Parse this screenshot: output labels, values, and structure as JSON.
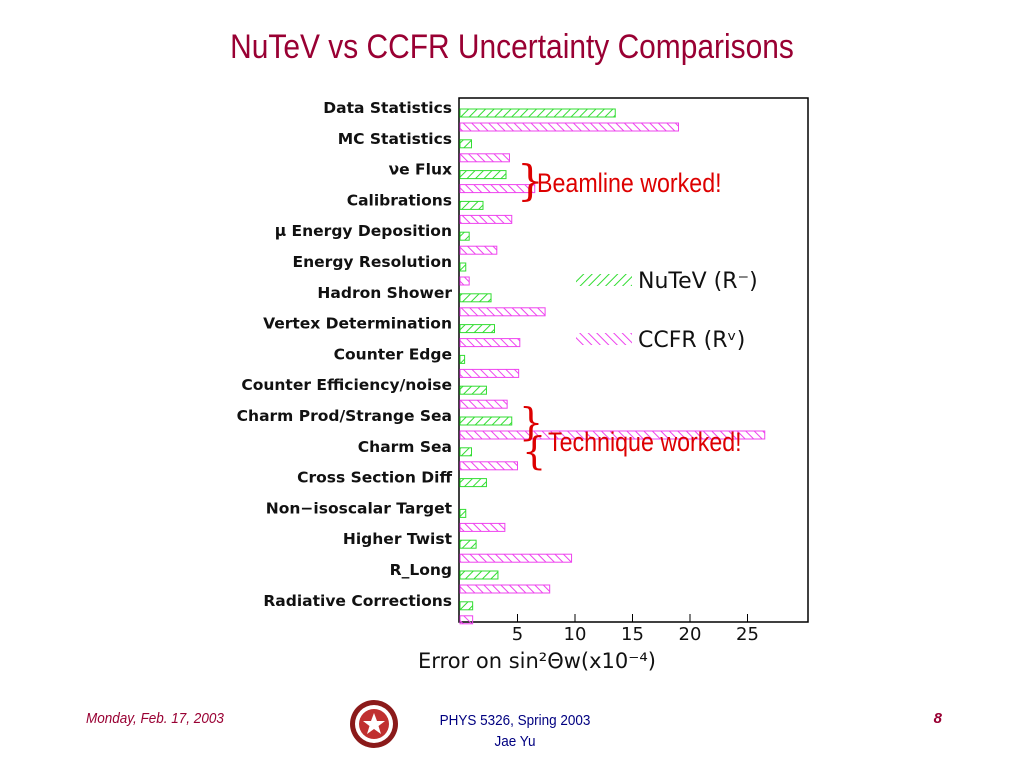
{
  "title": "NuTeV vs CCFR Uncertainty Comparisons",
  "chart_data": {
    "type": "bar",
    "orientation": "horizontal",
    "categories": [
      "Data Statistics",
      "MC Statistics",
      "νe Flux",
      "Calibrations",
      "μ Energy Deposition",
      "Energy Resolution",
      "Hadron Shower",
      "Vertex Determination",
      "Counter Edge",
      "Counter Efficiency/noise",
      "Charm Prod/Strange Sea",
      "Charm Sea",
      "Cross Section Diff",
      "Non−isoscalar Target",
      "Higher Twist",
      "R_Long",
      "Radiative Corrections"
    ],
    "series": [
      {
        "name": "NuTeV (R⁻)",
        "color": "#33dd33",
        "values": [
          13.5,
          1.0,
          4.0,
          2.0,
          0.8,
          0.5,
          2.7,
          3.0,
          0.4,
          2.3,
          4.5,
          1.0,
          2.3,
          0.5,
          1.4,
          3.3,
          1.1
        ]
      },
      {
        "name": "CCFR (Rᵛ)",
        "color": "#ee44ee",
        "values": [
          19.0,
          4.3,
          6.5,
          4.5,
          3.2,
          0.8,
          7.4,
          5.2,
          5.1,
          4.1,
          26.5,
          5.0,
          null,
          3.9,
          9.7,
          7.8,
          1.1
        ]
      }
    ],
    "xticks": [
      "5",
      "10",
      "15",
      "20",
      "25"
    ],
    "xlim": [
      0,
      30
    ],
    "xlabel": "Error on sin²Θw(x10⁻⁴)",
    "legend_placement": "right"
  },
  "annotations": {
    "beamline": "Beamline worked!",
    "technique": "Technique worked!"
  },
  "footer": {
    "date": "Monday, Feb. 17, 2003",
    "course": "PHYS 5326, Spring 2003",
    "author": "Jae Yu",
    "page": "8"
  }
}
